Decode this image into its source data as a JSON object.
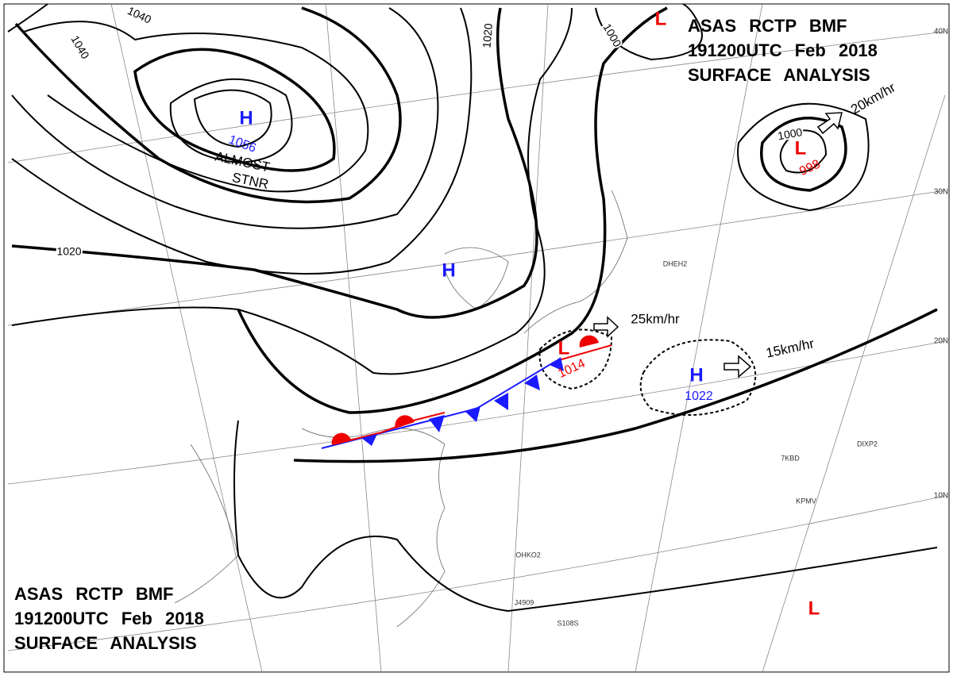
{
  "header": {
    "line1": "ASAS RCTP BMF",
    "line2": "191200UTC Feb 2018",
    "line3": "SURFACE ANALYSIS"
  },
  "centers": [
    {
      "symbol": "H",
      "pressure": "1056"
    },
    {
      "symbol": "H"
    },
    {
      "symbol": "H",
      "pressure": "1022"
    },
    {
      "symbol": "L"
    },
    {
      "symbol": "L",
      "pressure": "998"
    },
    {
      "symbol": "L",
      "pressure": "1014"
    },
    {
      "symbol": "L"
    }
  ],
  "isobar_labels": [
    "1040",
    "1040",
    "1020",
    "1020",
    "1000",
    "1000"
  ],
  "motions": [
    "20km/hr",
    "25km/hr",
    "15km/hr"
  ],
  "annotation": [
    "ALMOST",
    "STNR"
  ],
  "latitudes": [
    "40N",
    "30N",
    "20N",
    "10N"
  ],
  "stations": [
    "DHEH2",
    "7KBD",
    "DIXP2",
    "KPMV",
    "OHKO2",
    "J4909",
    "S108S"
  ]
}
